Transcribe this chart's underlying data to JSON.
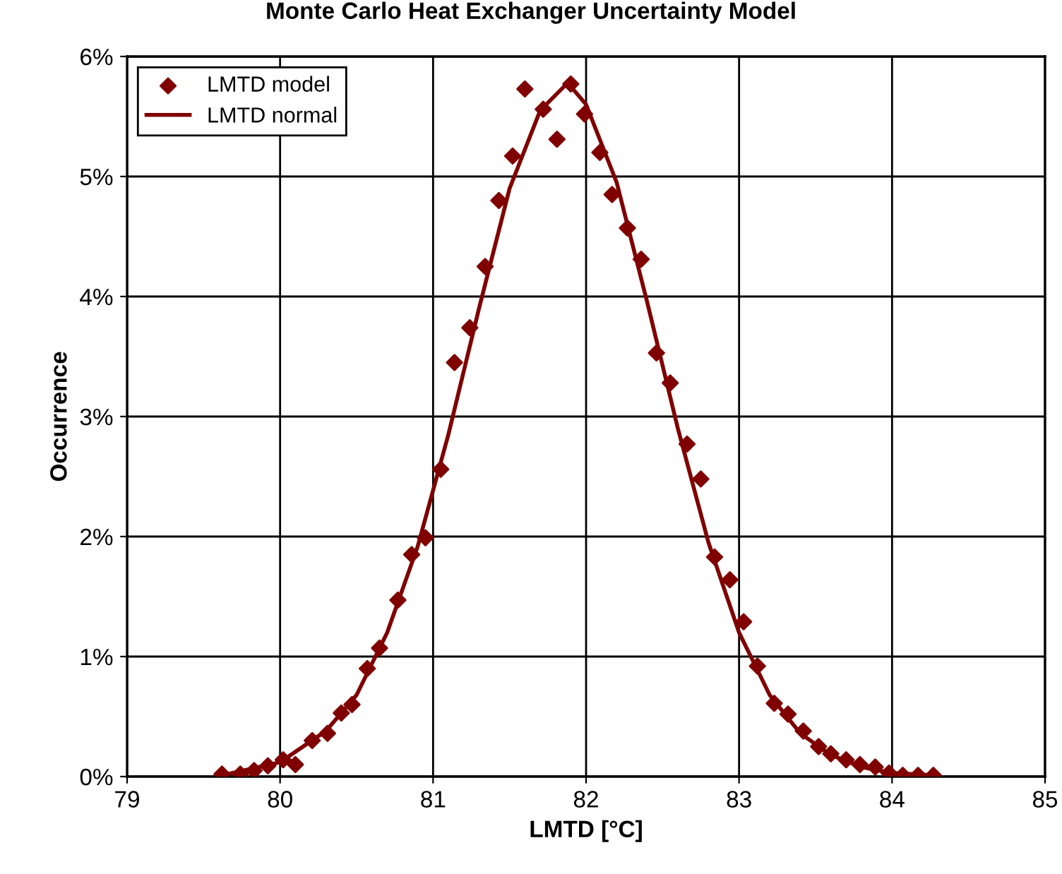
{
  "chart_data": {
    "type": "scatter",
    "title": "Monte Carlo Heat Exchanger Uncertainty Model",
    "xlabel": "LMTD [°C]",
    "ylabel": "Occurrence",
    "xlim": [
      79,
      85
    ],
    "xticks": [
      79,
      80,
      81,
      82,
      83,
      84,
      85
    ],
    "ylim": [
      0,
      6
    ],
    "yticks": [
      {
        "value": 0,
        "label": "0%"
      },
      {
        "value": 1,
        "label": "1%"
      },
      {
        "value": 2,
        "label": "2%"
      },
      {
        "value": 3,
        "label": "3%"
      },
      {
        "value": 4,
        "label": "4%"
      },
      {
        "value": 5,
        "label": "5%"
      },
      {
        "value": 6,
        "label": "6%"
      }
    ],
    "grid": true,
    "legend": "top left",
    "series": [
      {
        "name": "LMTD model",
        "marker": "diamond",
        "color": "#800000",
        "x": [
          79.62,
          79.74,
          79.83,
          79.92,
          80.02,
          80.1,
          80.21,
          80.31,
          80.4,
          80.47,
          80.57,
          80.65,
          80.77,
          80.86,
          80.95,
          81.05,
          81.14,
          81.24,
          81.34,
          81.43,
          81.52,
          81.6,
          81.72,
          81.81,
          81.9,
          81.99,
          82.09,
          82.17,
          82.27,
          82.36,
          82.46,
          82.55,
          82.66,
          82.75,
          82.84,
          82.94,
          83.03,
          83.12,
          83.23,
          83.32,
          83.42,
          83.52,
          83.6,
          83.7,
          83.79,
          83.89,
          83.98,
          84.07,
          84.17,
          84.27
        ],
        "values": [
          0.02,
          0.02,
          0.05,
          0.09,
          0.14,
          0.1,
          0.3,
          0.36,
          0.53,
          0.6,
          0.9,
          1.07,
          1.47,
          1.85,
          1.99,
          2.56,
          3.45,
          3.74,
          4.25,
          4.8,
          5.17,
          5.73,
          5.56,
          5.31,
          5.77,
          5.52,
          5.2,
          4.85,
          4.57,
          4.31,
          3.53,
          3.28,
          2.77,
          2.48,
          1.83,
          1.64,
          1.29,
          0.92,
          0.61,
          0.52,
          0.38,
          0.25,
          0.19,
          0.14,
          0.1,
          0.08,
          0.03,
          0.01,
          0.01,
          0.01
        ]
      },
      {
        "name": "LMTD normal",
        "type": "line",
        "marker": "none",
        "line_style": "solid",
        "color": "#800000",
        "x": [
          79.62,
          80.0,
          80.3,
          80.5,
          80.7,
          80.9,
          81.1,
          81.3,
          81.5,
          81.7,
          81.88,
          82.0,
          82.2,
          82.4,
          82.6,
          82.8,
          83.0,
          83.2,
          83.4,
          83.6,
          83.8,
          84.0,
          84.3
        ],
        "values": [
          0.01,
          0.12,
          0.38,
          0.68,
          1.2,
          1.92,
          2.85,
          3.9,
          4.9,
          5.55,
          5.78,
          5.6,
          4.95,
          3.95,
          2.9,
          1.95,
          1.2,
          0.68,
          0.36,
          0.18,
          0.08,
          0.03,
          0.01
        ]
      }
    ]
  }
}
